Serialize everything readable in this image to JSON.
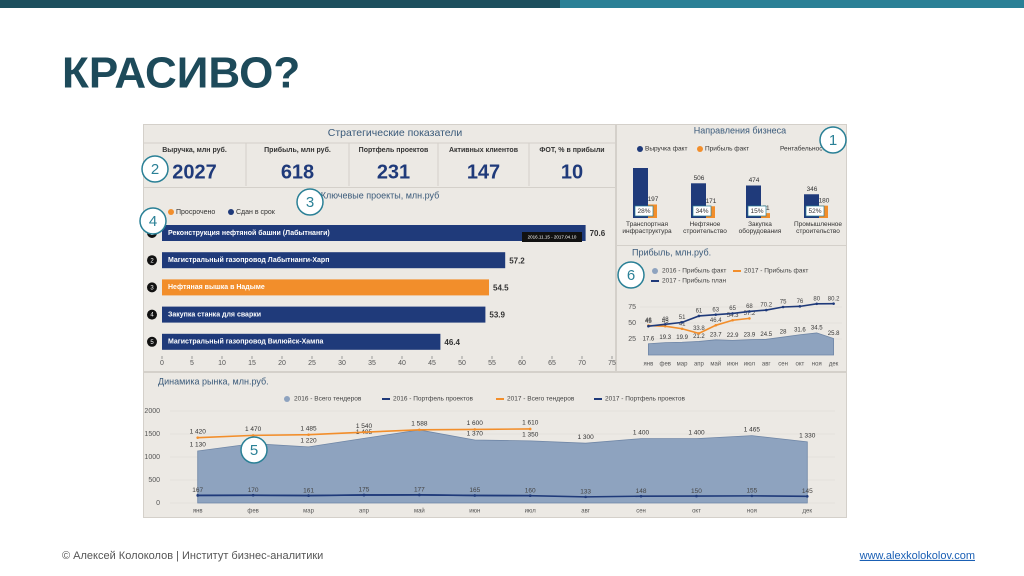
{
  "slide": {
    "title": "КРАСИВО?",
    "footer_left": "© Алексей Колоколов | Институт бизнес-аналитики",
    "footer_right": "www.alexkolokolov.com",
    "callouts": [
      "1",
      "2",
      "3",
      "4",
      "5",
      "6"
    ]
  },
  "kpi": {
    "title": "Стратегические показатели",
    "items": [
      {
        "label": "Выручка, млн руб.",
        "value": 2027
      },
      {
        "label": "Прибыль, млн руб.",
        "value": 618
      },
      {
        "label": "Портфель проектов",
        "value": 231
      },
      {
        "label": "Активных клиентов",
        "value": 147
      },
      {
        "label": "ФОТ, % в прибыли",
        "value": 10
      }
    ]
  },
  "chart_data": [
    {
      "type": "hbar",
      "title": "Ключевые проекты, млн.руб",
      "legend": [
        {
          "name": "Просрочено",
          "color": "#f28e2b"
        },
        {
          "name": "Сдан в срок",
          "color": "#1f3a7a"
        }
      ],
      "ranks": [
        "1",
        "2",
        "3",
        "4",
        "5"
      ],
      "categories": [
        "Реконструкция нефтяной башни (Лабытнанги)",
        "Магистральный газопровод Лабытнанги-Харп",
        "Нефтяная вышка в Надыме",
        "Закупка станка для сварки",
        "Магистральный газопровод Вилюйск-Хампа"
      ],
      "values": [
        70.6,
        57.2,
        54.5,
        53.9,
        46.4
      ],
      "colors": [
        "#1f3a7a",
        "#1f3a7a",
        "#f28e2b",
        "#1f3a7a",
        "#1f3a7a"
      ],
      "xlim": [
        0,
        75
      ],
      "xticks": [
        0,
        5,
        10,
        15,
        20,
        25,
        30,
        35,
        40,
        45,
        50,
        55,
        60,
        65,
        70,
        75
      ],
      "annotation": "2016.11.15 - 2017.04.10"
    },
    {
      "type": "grouped_bar",
      "title": "Направления бизнеса",
      "categories": [
        "Транспортная инфраструктура",
        "Нефтяное строительство",
        "Закупка оборудования",
        "Промышленное строительство"
      ],
      "series": [
        {
          "name": "Выручка факт",
          "color": "#1f3a7a",
          "values": [
            729,
            506,
            474,
            346
          ],
          "value_labels": [
            null,
            "506",
            "474",
            "346"
          ]
        },
        {
          "name": "Прибыль факт",
          "color": "#f28e2b",
          "values": [
            197,
            171,
            71,
            180
          ]
        },
        {
          "name": "Рентабельность",
          "values": [
            28,
            34,
            15,
            52
          ],
          "value_labels": [
            "28%",
            "34%",
            "15%",
            "52%"
          ]
        }
      ]
    },
    {
      "type": "line",
      "title": "Прибыль, млн.руб.",
      "categories": [
        "янв",
        "фев",
        "мар",
        "апр",
        "май",
        "июн",
        "июл",
        "авг",
        "сен",
        "окт",
        "ноя",
        "дек"
      ],
      "ylim": [
        0,
        100
      ],
      "yticks": [
        25,
        50,
        75
      ],
      "series": [
        {
          "name": "2016 - Прибыль факт",
          "color": "#8ea3bf",
          "style": "area",
          "values": [
            17.6,
            19.3,
            19.9,
            21.2,
            23.7,
            22.9,
            23.9,
            24.5,
            28,
            31.6,
            34.5,
            25.8
          ]
        },
        {
          "name": "2017 - Прибыль факт",
          "color": "#f28e2b",
          "style": "line",
          "values": [
            46,
            45,
            41,
            33.8,
            46.4,
            54.3,
            57.2,
            null,
            null,
            null,
            null,
            null
          ]
        },
        {
          "name": "2017 - Прибыль план",
          "color": "#1f3a7a",
          "style": "line",
          "values": [
            45,
            48,
            51,
            61,
            63,
            65,
            68,
            70.2,
            75,
            76,
            80,
            80.2
          ]
        }
      ]
    },
    {
      "type": "line",
      "title": "Динамика рынка, млн.руб.",
      "categories": [
        "янв",
        "фев",
        "мар",
        "апр",
        "май",
        "июн",
        "июл",
        "авг",
        "сен",
        "окт",
        "ноя",
        "дек"
      ],
      "ylim": [
        0,
        2000
      ],
      "yticks": [
        0,
        500,
        1000,
        1500,
        2000
      ],
      "series": [
        {
          "name": "2016 - Всего тендеров",
          "color": "#8ea3bf",
          "style": "area",
          "values": [
            1130,
            1290,
            1220,
            1405,
            1588,
            1370,
            1350,
            1300,
            1400,
            1400,
            1465,
            1330
          ],
          "value_labels": [
            "1 130",
            null,
            "1 220",
            "1 405",
            "1 588",
            "1 370",
            "1 350",
            "1 300",
            "1 400",
            "1 400",
            "1 465",
            "1 330"
          ]
        },
        {
          "name": "2016 - Портфель проектов",
          "color": "#1f3a7a",
          "style": "line",
          "values": [
            167,
            170,
            161,
            175,
            177,
            165,
            160,
            133,
            148,
            150,
            155,
            145
          ]
        },
        {
          "name": "2017 - Всего тендеров",
          "color": "#f28e2b",
          "style": "line",
          "values": [
            1420,
            1470,
            1485,
            1540,
            1590,
            1600,
            1610,
            null,
            null,
            null,
            null,
            null
          ],
          "value_labels": [
            "1 420",
            "1 470",
            "1 485",
            "1 540",
            null,
            "1 600",
            "1 610",
            null,
            null,
            null,
            null,
            null
          ]
        },
        {
          "name": "2017 - Портфель проектов",
          "color": "#1f3a7a",
          "style": "line",
          "values": [
            165,
            168,
            163,
            172,
            175,
            163,
            158,
            null,
            null,
            null,
            null,
            null
          ]
        }
      ]
    }
  ]
}
